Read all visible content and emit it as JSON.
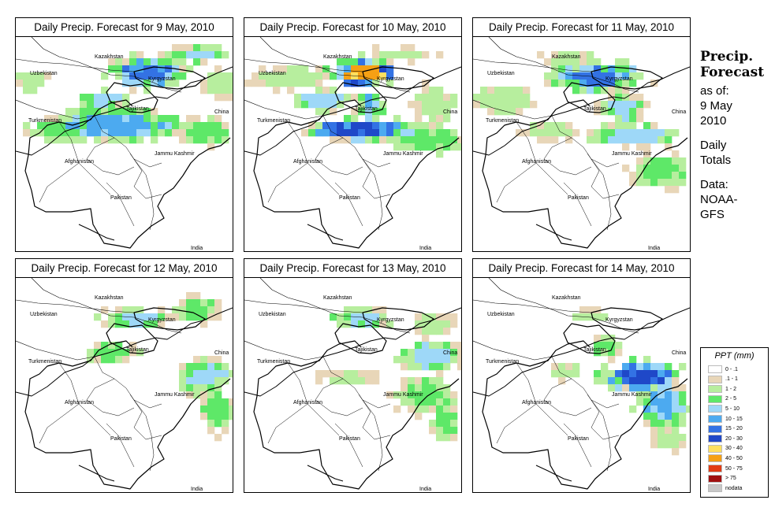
{
  "panels": [
    {
      "title": "Daily Precip. Forecast for  9 May, 2010",
      "day": 0
    },
    {
      "title": "Daily Precip. Forecast for  10 May, 2010",
      "day": 1
    },
    {
      "title": "Daily Precip. Forecast for  11 May, 2010",
      "day": 2
    },
    {
      "title": "Daily Precip. Forecast for  12 May, 2010",
      "day": 3
    },
    {
      "title": "Daily Precip. Forecast for  13 May, 2010",
      "day": 4
    },
    {
      "title": "Daily Precip. Forecast for  14 May, 2010",
      "day": 5
    }
  ],
  "map_labels": {
    "kazakhstan": "Kazakhstan",
    "uzbekistan": "Uzbekistan",
    "kyrgyzstan": "Kyrgyzstan",
    "tajikistan": "Tajikistan",
    "turkmenistan": "Turkmenistan",
    "china": "China",
    "afghanistan": "Afghanistan",
    "jammu_kashmir": "Jammu Kashmir",
    "pakistan": "Pakistan",
    "india": "India"
  },
  "side": {
    "heading_1": "Precip.",
    "heading_2": "Forecast",
    "as_of": "as of:",
    "date_1": "9 May",
    "date_2": "2010",
    "totals_1": "Daily",
    "totals_2": "Totals",
    "data_1": "Data:",
    "data_2": "NOAA-",
    "data_3": "GFS"
  },
  "legend": {
    "title": "PPT (mm)",
    "items": [
      {
        "label": "0 - .1",
        "color": "#ffffff"
      },
      {
        "label": ".1 - 1",
        "color": "#e8d6b8"
      },
      {
        "label": "1 - 2",
        "color": "#b7ee9e"
      },
      {
        "label": "2 - 5",
        "color": "#5ee868"
      },
      {
        "label": "5 - 10",
        "color": "#9ed8f8"
      },
      {
        "label": "10 - 15",
        "color": "#4caaf0"
      },
      {
        "label": "15 - 20",
        "color": "#3372e4"
      },
      {
        "label": "20 - 30",
        "color": "#1f48c8"
      },
      {
        "label": "30 - 40",
        "color": "#ffe060"
      },
      {
        "label": "40 - 50",
        "color": "#f6a014"
      },
      {
        "label": "50 - 75",
        "color": "#e23c14"
      },
      {
        "label": "> 75",
        "color": "#a01010"
      },
      {
        "label": "nodata",
        "color": "#c8c8c8"
      }
    ]
  }
}
